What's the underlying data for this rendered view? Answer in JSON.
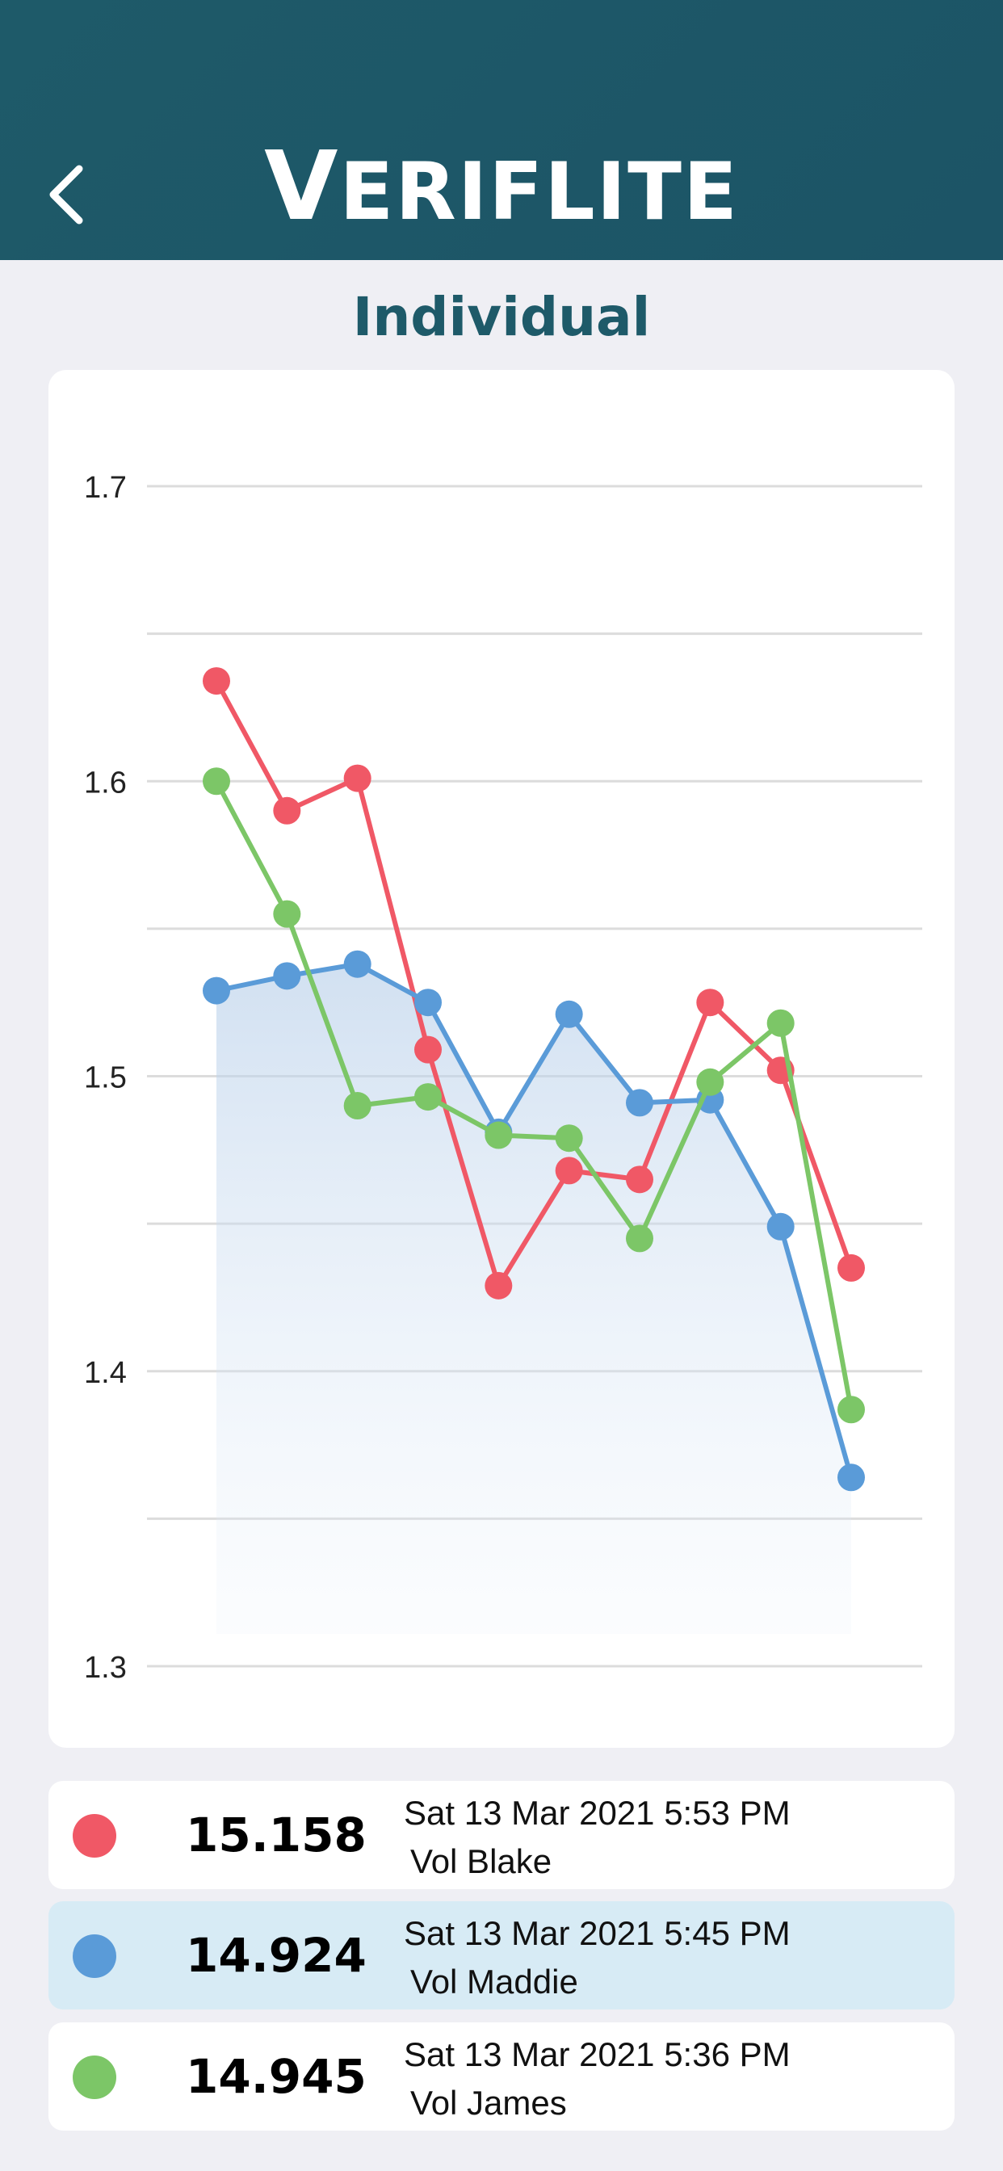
{
  "header": {
    "back_icon": "chevron-left-icon",
    "logo_first": "V",
    "logo_rest": "ERIFLITE",
    "background": "#1e5a69"
  },
  "page": {
    "title": "Individual"
  },
  "chart_data": {
    "type": "line",
    "title": "",
    "xlabel": "",
    "ylabel": "",
    "ylim": [
      1.3,
      1.7
    ],
    "yticks": [
      1.3,
      1.4,
      1.5,
      1.6,
      1.7
    ],
    "grid": true,
    "x": [
      1,
      2,
      3,
      4,
      5,
      6,
      7,
      8,
      9,
      10
    ],
    "series": [
      {
        "color": "#f05866",
        "values": [
          1.634,
          1.59,
          1.601,
          1.509,
          1.429,
          1.468,
          1.465,
          1.525,
          1.502,
          1.435
        ]
      },
      {
        "color": "#5a9bd8",
        "filled": true,
        "values": [
          1.529,
          1.534,
          1.538,
          1.525,
          1.481,
          1.521,
          1.491,
          1.492,
          1.449,
          1.364
        ]
      },
      {
        "color": "#7cc667",
        "values": [
          1.6,
          1.555,
          1.49,
          1.493,
          1.48,
          1.479,
          1.445,
          1.498,
          1.518,
          1.387
        ]
      }
    ]
  },
  "legend": [
    {
      "color": "#f05866",
      "score": "15.158",
      "datetime": "Sat 13 Mar 2021 5:53 PM",
      "name": "Vol Blake",
      "selected": false
    },
    {
      "color": "#5a9bd8",
      "score": "14.924",
      "datetime": "Sat 13 Mar 2021 5:45 PM",
      "name": "Vol Maddie",
      "selected": true
    },
    {
      "color": "#7cc667",
      "score": "14.945",
      "datetime": "Sat 13 Mar 2021 5:36 PM",
      "name": "Vol James",
      "selected": false
    }
  ]
}
